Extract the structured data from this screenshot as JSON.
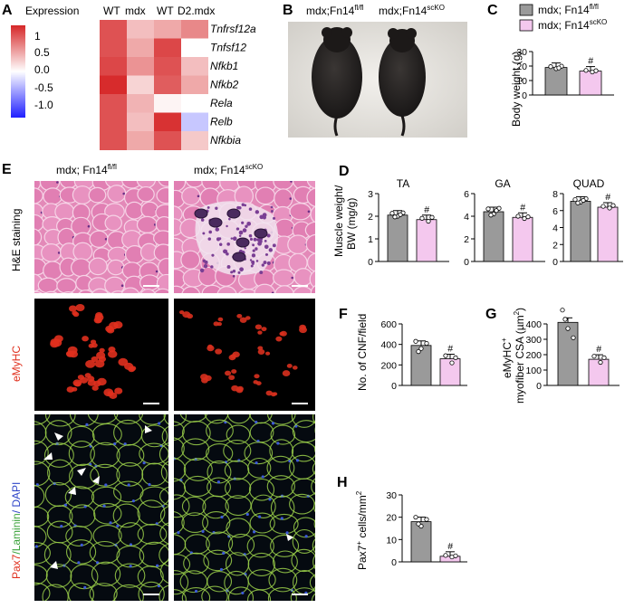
{
  "panels": {
    "A": {
      "letter": "A",
      "colorbar_title": "Expression",
      "colorbar_ticks": [
        "1",
        "0.5",
        "0.0",
        "-0.5",
        "-1.0"
      ],
      "columns": [
        "WT",
        "mdx",
        "WT",
        "D2.mdx"
      ],
      "genes": [
        "Tnfrsf12a",
        "Tnfsf12",
        "Nfkb1",
        "Nfkb2",
        "Rela",
        "Relb",
        "Nfkbia"
      ],
      "heatmap": [
        [
          0.8,
          0.3,
          0.4,
          0.55
        ],
        [
          0.8,
          0.4,
          0.85,
          0.0
        ],
        [
          0.85,
          0.5,
          0.8,
          0.3
        ],
        [
          0.98,
          0.2,
          0.75,
          0.4
        ],
        [
          0.8,
          0.35,
          0.05,
          0.0
        ],
        [
          0.8,
          0.3,
          0.95,
          -0.25
        ],
        [
          0.8,
          0.4,
          0.8,
          0.25
        ]
      ]
    },
    "B": {
      "letter": "B",
      "label_left_main": "mdx;Fn14",
      "label_left_sup": "fl/fl",
      "label_right_main": "mdx;Fn14",
      "label_right_sup": "scKO"
    },
    "C": {
      "letter": "C",
      "legend_wt_main": "mdx; Fn14",
      "legend_wt_sup": "fl/fl",
      "legend_ko_main": "mdx; Fn14",
      "legend_ko_sup": "scKO",
      "ylabel": "Body weight (g)",
      "yticks": [
        "0",
        "10",
        "20",
        "30"
      ],
      "mark": "#"
    },
    "D": {
      "letter": "D",
      "ylabel_line1": "Muscle weight/",
      "ylabel_line2": "BW (mg/g)",
      "subpanels": [
        {
          "title": "TA",
          "yticks": [
            "0",
            "1",
            "2",
            "3"
          ],
          "mark": "#"
        },
        {
          "title": "GA",
          "yticks": [
            "0",
            "2",
            "4",
            "6"
          ],
          "mark": "#"
        },
        {
          "title": "QUAD",
          "yticks": [
            "0",
            "2",
            "4",
            "6",
            "8"
          ],
          "mark": "#"
        }
      ]
    },
    "E": {
      "letter": "E",
      "col_left_main": "mdx; Fn14",
      "col_left_sup": "fl/fl",
      "col_right_main": "mdx; Fn14",
      "col_right_sup": "scKO",
      "row1_label": "H&E staining",
      "row2_label": "eMyHC",
      "row3_pax7": "Pax7",
      "row3_laminin": "/Laminin",
      "row3_dapi": "/ DAPI"
    },
    "F": {
      "letter": "F",
      "ylabel": "No. of CNF/field",
      "yticks": [
        "0",
        "200",
        "400",
        "600"
      ],
      "mark": "#"
    },
    "G": {
      "letter": "G",
      "ylabel_line1": "eMyHC",
      "ylabel_sup1": "+",
      "ylabel_line2": "myofiber CSA (µm",
      "ylabel_sup2": "2",
      "ylabel_end": ")",
      "yticks": [
        "0",
        "100",
        "200",
        "300",
        "400"
      ],
      "mark": "#"
    },
    "H": {
      "letter": "H",
      "ylabel_main": "Pax7",
      "ylabel_sup": "+",
      "ylabel_rest": " cells/mm",
      "ylabel_sup2": "2",
      "yticks": [
        "0",
        "10",
        "20",
        "30"
      ],
      "mark": "#"
    }
  },
  "chart_data": [
    {
      "id": "C",
      "type": "bar",
      "categories": [
        "mdx; Fn14 fl/fl",
        "mdx; Fn14 scKO"
      ],
      "values": [
        19,
        16.5
      ],
      "ylabel": "Body weight (g)",
      "ylim": [
        0,
        30
      ]
    },
    {
      "id": "D-TA",
      "type": "bar",
      "categories": [
        "mdx; Fn14 fl/fl",
        "mdx; Fn14 scKO"
      ],
      "values": [
        2.05,
        1.85
      ],
      "title": "TA",
      "ylim": [
        0,
        3
      ]
    },
    {
      "id": "D-GA",
      "type": "bar",
      "categories": [
        "mdx; Fn14 fl/fl",
        "mdx; Fn14 scKO"
      ],
      "values": [
        4.4,
        3.9
      ],
      "title": "GA",
      "ylim": [
        0,
        6
      ]
    },
    {
      "id": "D-QUAD",
      "type": "bar",
      "categories": [
        "mdx; Fn14 fl/fl",
        "mdx; Fn14 scKO"
      ],
      "values": [
        7.1,
        6.4
      ],
      "title": "QUAD",
      "ylim": [
        0,
        8
      ]
    },
    {
      "id": "F",
      "type": "bar",
      "categories": [
        "mdx; Fn14 fl/fl",
        "mdx; Fn14 scKO"
      ],
      "values": [
        390,
        260
      ],
      "ylabel": "No. of CNF/field",
      "ylim": [
        0,
        600
      ]
    },
    {
      "id": "G",
      "type": "bar",
      "categories": [
        "mdx; Fn14 fl/fl",
        "mdx; Fn14 scKO"
      ],
      "values": [
        410,
        170
      ],
      "ylim": [
        0,
        400
      ]
    },
    {
      "id": "H",
      "type": "bar",
      "categories": [
        "mdx; Fn14 fl/fl",
        "mdx; Fn14 scKO"
      ],
      "values": [
        18,
        2.5
      ],
      "ylim": [
        0,
        30
      ]
    }
  ],
  "colors": {
    "wt_bar": "#9a9a9a",
    "ko_bar": "#f4c8ee",
    "heat_high": "#d62728",
    "heat_mid": "#ffffff",
    "heat_low": "#1f1fff",
    "he_background": "#e389b8",
    "emyhc": "#e0301e",
    "laminin": "#9bd04a",
    "dapi": "#3c5ad8"
  }
}
